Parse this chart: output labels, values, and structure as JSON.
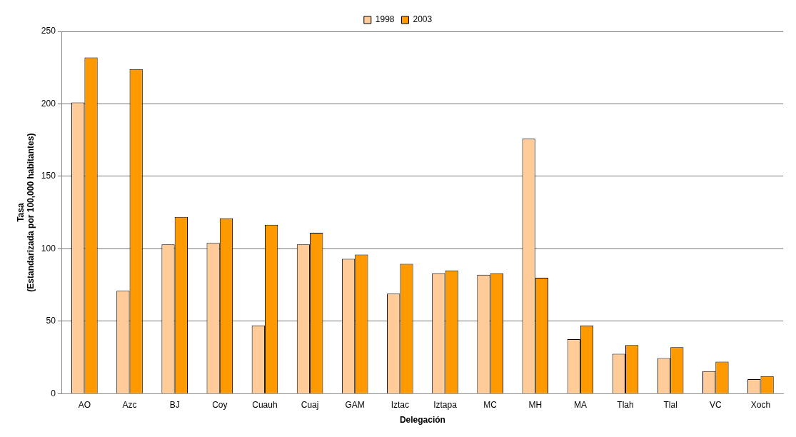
{
  "chart_data": {
    "type": "bar",
    "xlabel": "Delegación",
    "ylabel": "Tasa\n(Estandarizada por 100,000 habitantes)",
    "categories": [
      "AO",
      "Azc",
      "BJ",
      "Coy",
      "Cuauh",
      "Cuaj",
      "GAM",
      "Iztac",
      "Iztapa",
      "MC",
      "MH",
      "MA",
      "Tlah",
      "Tlal",
      "VC",
      "Xoch"
    ],
    "series": [
      {
        "name": "1998",
        "color": "#ffcc99",
        "values": [
          201,
          71,
          103,
          104,
          47,
          103,
          93,
          69,
          83,
          82,
          176,
          37.5,
          27.5,
          24.5,
          15.5,
          10
        ]
      },
      {
        "name": "2003",
        "color": "#ff9900",
        "values": [
          232,
          224,
          122,
          121,
          116.5,
          111,
          96,
          89.5,
          85,
          83,
          80,
          47,
          33.5,
          32,
          22,
          12
        ]
      }
    ],
    "ylim": [
      0,
      250
    ],
    "yticks": [
      0,
      50,
      100,
      150,
      200,
      250
    ],
    "grid": "y",
    "legend": "top"
  }
}
